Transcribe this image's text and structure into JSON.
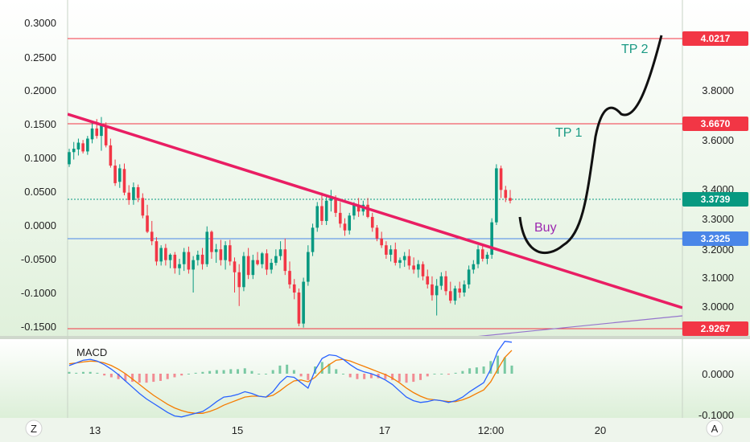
{
  "chart_data": {
    "type": "candlestick",
    "left_axis": {
      "ticks": [
        "0.3000",
        "0.2500",
        "0.2000",
        "0.1500",
        "0.1000",
        "0.0500",
        "0.0000",
        "-0.0500",
        "-0.1000",
        "-0.1500"
      ]
    },
    "right_axis": {
      "ticks": [
        "3.8000",
        "3.6000",
        "3.4000",
        "3.3000",
        "3.2000",
        "3.1000",
        "3.0000"
      ]
    },
    "macd_axis": {
      "ticks": [
        "0.0000",
        "-0.1000"
      ]
    },
    "x_axis": {
      "ticks": [
        "13",
        "15",
        "17",
        "12:00",
        "20"
      ]
    },
    "corner_buttons": {
      "left": "Z",
      "right": "A"
    },
    "price_lines": [
      {
        "label": "4.0217",
        "color": "#f23645"
      },
      {
        "label": "3.6670",
        "color": "#f23645"
      },
      {
        "label": "3.3739",
        "color": "#089981"
      },
      {
        "label": "3.2325",
        "color": "#4a86e8"
      },
      {
        "label": "2.9267",
        "color": "#f23645"
      }
    ],
    "annotations": [
      {
        "text": "TP 2",
        "color": "#1a9a84"
      },
      {
        "text": "TP 1",
        "color": "#1a9a84"
      },
      {
        "text": "Buy",
        "color": "#9c27b0"
      }
    ],
    "candles_left_axis": [
      [
        0.09,
        0.113,
        0.086,
        0.108
      ],
      [
        0.108,
        0.123,
        0.097,
        0.113
      ],
      [
        0.112,
        0.128,
        0.103,
        0.122
      ],
      [
        0.121,
        0.126,
        0.106,
        0.109
      ],
      [
        0.109,
        0.132,
        0.104,
        0.128
      ],
      [
        0.127,
        0.152,
        0.121,
        0.143
      ],
      [
        0.143,
        0.157,
        0.128,
        0.132
      ],
      [
        0.132,
        0.16,
        0.11,
        0.148
      ],
      [
        0.147,
        0.152,
        0.115,
        0.118
      ],
      [
        0.118,
        0.128,
        0.085,
        0.088
      ],
      [
        0.088,
        0.097,
        0.058,
        0.062
      ],
      [
        0.064,
        0.09,
        0.055,
        0.084
      ],
      [
        0.083,
        0.091,
        0.044,
        0.048
      ],
      [
        0.048,
        0.059,
        0.03,
        0.037
      ],
      [
        0.037,
        0.063,
        0.03,
        0.056
      ],
      [
        0.056,
        0.06,
        0.034,
        0.04
      ],
      [
        0.04,
        0.047,
        0.01,
        0.014
      ],
      [
        0.014,
        0.03,
        -0.012,
        -0.01
      ],
      [
        -0.01,
        0.006,
        -0.03,
        -0.024
      ],
      [
        -0.024,
        -0.018,
        -0.06,
        -0.054
      ],
      [
        -0.054,
        -0.03,
        -0.06,
        -0.034
      ],
      [
        -0.034,
        -0.028,
        -0.06,
        -0.052
      ],
      [
        -0.052,
        -0.042,
        -0.064,
        -0.044
      ],
      [
        -0.044,
        -0.04,
        -0.072,
        -0.064
      ],
      [
        -0.064,
        -0.05,
        -0.074,
        -0.058
      ],
      [
        -0.058,
        -0.034,
        -0.068,
        -0.04
      ],
      [
        -0.04,
        -0.032,
        -0.072,
        -0.066
      ],
      [
        -0.066,
        -0.046,
        -0.1,
        -0.052
      ],
      [
        -0.052,
        -0.038,
        -0.06,
        -0.044
      ],
      [
        -0.044,
        -0.034,
        -0.066,
        -0.058
      ],
      [
        -0.058,
        -0.002,
        -0.062,
        -0.01
      ],
      [
        -0.01,
        -0.008,
        -0.05,
        -0.04
      ],
      [
        -0.04,
        -0.028,
        -0.056,
        -0.036
      ],
      [
        -0.036,
        -0.022,
        -0.06,
        -0.052
      ],
      [
        -0.052,
        -0.024,
        -0.066,
        -0.03
      ],
      [
        -0.03,
        -0.022,
        -0.06,
        -0.054
      ],
      [
        -0.054,
        -0.048,
        -0.1,
        -0.07
      ],
      [
        -0.07,
        -0.058,
        -0.12,
        -0.092
      ],
      [
        -0.092,
        -0.04,
        -0.098,
        -0.046
      ],
      [
        -0.046,
        -0.034,
        -0.08,
        -0.074
      ],
      [
        -0.074,
        -0.044,
        -0.08,
        -0.052
      ],
      [
        -0.052,
        -0.04,
        -0.06,
        -0.058
      ],
      [
        -0.058,
        -0.04,
        -0.064,
        -0.042
      ],
      [
        -0.042,
        -0.036,
        -0.074,
        -0.066
      ],
      [
        -0.066,
        -0.05,
        -0.072,
        -0.056
      ],
      [
        -0.056,
        -0.036,
        -0.06,
        -0.046
      ],
      [
        -0.046,
        -0.024,
        -0.052,
        -0.036
      ],
      [
        -0.036,
        -0.02,
        -0.074,
        -0.068
      ],
      [
        -0.068,
        -0.054,
        -0.094,
        -0.088
      ],
      [
        -0.088,
        -0.08,
        -0.11,
        -0.1
      ],
      [
        -0.1,
        -0.094,
        -0.15,
        -0.146
      ],
      [
        -0.146,
        -0.078,
        -0.152,
        -0.084
      ],
      [
        -0.084,
        -0.03,
        -0.09,
        -0.04
      ],
      [
        -0.04,
        0.002,
        -0.046,
        -0.004
      ],
      [
        -0.004,
        0.034,
        -0.01,
        0.028
      ],
      [
        0.028,
        0.048,
        0.0,
        0.006
      ],
      [
        0.006,
        0.044,
        0.0,
        0.036
      ],
      [
        0.036,
        0.052,
        0.02,
        0.04
      ],
      [
        0.04,
        0.044,
        0.012,
        0.018
      ],
      [
        0.018,
        0.034,
        -0.004,
        0.002
      ],
      [
        0.002,
        0.01,
        -0.016,
        -0.008
      ],
      [
        -0.008,
        0.018,
        -0.014,
        0.014
      ],
      [
        0.014,
        0.034,
        0.008,
        0.03
      ],
      [
        0.03,
        0.04,
        0.012,
        0.02
      ],
      [
        0.02,
        0.036,
        0.014,
        0.03
      ],
      [
        0.03,
        0.04,
        0.01,
        0.012
      ],
      [
        0.012,
        0.018,
        -0.01,
        -0.004
      ],
      [
        -0.004,
        0.0,
        -0.024,
        -0.02
      ],
      [
        -0.02,
        -0.01,
        -0.034,
        -0.03
      ],
      [
        -0.03,
        -0.024,
        -0.05,
        -0.044
      ],
      [
        -0.044,
        -0.03,
        -0.054,
        -0.036
      ],
      [
        -0.036,
        -0.026,
        -0.06,
        -0.056
      ],
      [
        -0.056,
        -0.048,
        -0.064,
        -0.052
      ],
      [
        -0.052,
        -0.04,
        -0.062,
        -0.046
      ],
      [
        -0.046,
        -0.036,
        -0.066,
        -0.06
      ],
      [
        -0.06,
        -0.048,
        -0.072,
        -0.066
      ],
      [
        -0.066,
        -0.052,
        -0.078,
        -0.058
      ],
      [
        -0.058,
        -0.054,
        -0.082,
        -0.076
      ],
      [
        -0.076,
        -0.066,
        -0.094,
        -0.088
      ],
      [
        -0.088,
        -0.076,
        -0.112,
        -0.104
      ],
      [
        -0.104,
        -0.08,
        -0.134,
        -0.09
      ],
      [
        -0.09,
        -0.07,
        -0.096,
        -0.076
      ],
      [
        -0.076,
        -0.068,
        -0.104,
        -0.098
      ],
      [
        -0.098,
        -0.084,
        -0.116,
        -0.112
      ],
      [
        -0.112,
        -0.09,
        -0.118,
        -0.094
      ],
      [
        -0.094,
        -0.084,
        -0.108,
        -0.1
      ],
      [
        -0.1,
        -0.082,
        -0.106,
        -0.088
      ],
      [
        -0.088,
        -0.06,
        -0.094,
        -0.066
      ],
      [
        -0.066,
        -0.052,
        -0.072,
        -0.058
      ],
      [
        -0.058,
        -0.03,
        -0.064,
        -0.036
      ],
      [
        -0.036,
        -0.028,
        -0.054,
        -0.05
      ],
      [
        -0.05,
        -0.04,
        -0.058,
        -0.044
      ],
      [
        -0.044,
        0.01,
        -0.05,
        0.004
      ],
      [
        0.004,
        0.09,
        0.0,
        0.084
      ],
      [
        0.084,
        0.088,
        0.04,
        0.052
      ],
      [
        0.052,
        0.058,
        0.034,
        0.04
      ],
      [
        0.04,
        0.052,
        0.032,
        0.036
      ]
    ],
    "macd_line": [
      0.018,
      0.024,
      0.03,
      0.032,
      0.028,
      0.02,
      0.01,
      -0.002,
      -0.016,
      -0.03,
      -0.044,
      -0.056,
      -0.066,
      -0.076,
      -0.086,
      -0.094,
      -0.096,
      -0.092,
      -0.088,
      -0.084,
      -0.074,
      -0.062,
      -0.052,
      -0.05,
      -0.046,
      -0.04,
      -0.044,
      -0.05,
      -0.052,
      -0.04,
      -0.02,
      -0.006,
      -0.008,
      -0.02,
      -0.032,
      0.008,
      0.034,
      0.042,
      0.04,
      0.032,
      0.02,
      0.01,
      0.004,
      0.0,
      -0.006,
      -0.014,
      -0.024,
      -0.038,
      -0.052,
      -0.06,
      -0.064,
      -0.062,
      -0.058,
      -0.06,
      -0.064,
      -0.06,
      -0.052,
      -0.04,
      -0.03,
      -0.02,
      0.01,
      0.05,
      0.072,
      0.07
    ],
    "signal_line": [
      0.022,
      0.024,
      0.026,
      0.028,
      0.027,
      0.024,
      0.018,
      0.01,
      0.0,
      -0.012,
      -0.024,
      -0.036,
      -0.048,
      -0.058,
      -0.068,
      -0.076,
      -0.082,
      -0.086,
      -0.088,
      -0.088,
      -0.084,
      -0.078,
      -0.07,
      -0.064,
      -0.058,
      -0.052,
      -0.05,
      -0.05,
      -0.052,
      -0.048,
      -0.038,
      -0.026,
      -0.016,
      -0.014,
      -0.018,
      -0.008,
      0.008,
      0.02,
      0.03,
      0.032,
      0.028,
      0.022,
      0.016,
      0.01,
      0.004,
      -0.002,
      -0.01,
      -0.02,
      -0.032,
      -0.042,
      -0.05,
      -0.056,
      -0.058,
      -0.06,
      -0.062,
      -0.062,
      -0.058,
      -0.052,
      -0.044,
      -0.036,
      -0.018,
      0.01,
      0.036,
      0.052
    ],
    "macd_hist": [
      0.004,
      0.002,
      0.004,
      0.004,
      0.002,
      -0.004,
      -0.008,
      -0.012,
      -0.016,
      -0.018,
      -0.02,
      -0.02,
      -0.018,
      -0.016,
      -0.012,
      -0.008,
      -0.004,
      0.0,
      0.002,
      0.004,
      0.006,
      0.008,
      0.008,
      0.01,
      0.01,
      0.012,
      0.006,
      0.0,
      0.0,
      0.008,
      0.018,
      0.02,
      0.008,
      -0.006,
      -0.014,
      0.016,
      0.026,
      0.022,
      0.01,
      0.0,
      -0.008,
      -0.012,
      -0.012,
      -0.01,
      -0.01,
      -0.012,
      -0.014,
      -0.018,
      -0.02,
      -0.018,
      -0.014,
      -0.006,
      0.0,
      0.0,
      -0.002,
      0.002,
      0.006,
      0.012,
      0.014,
      0.016,
      0.028,
      0.04,
      0.036,
      0.018
    ]
  }
}
